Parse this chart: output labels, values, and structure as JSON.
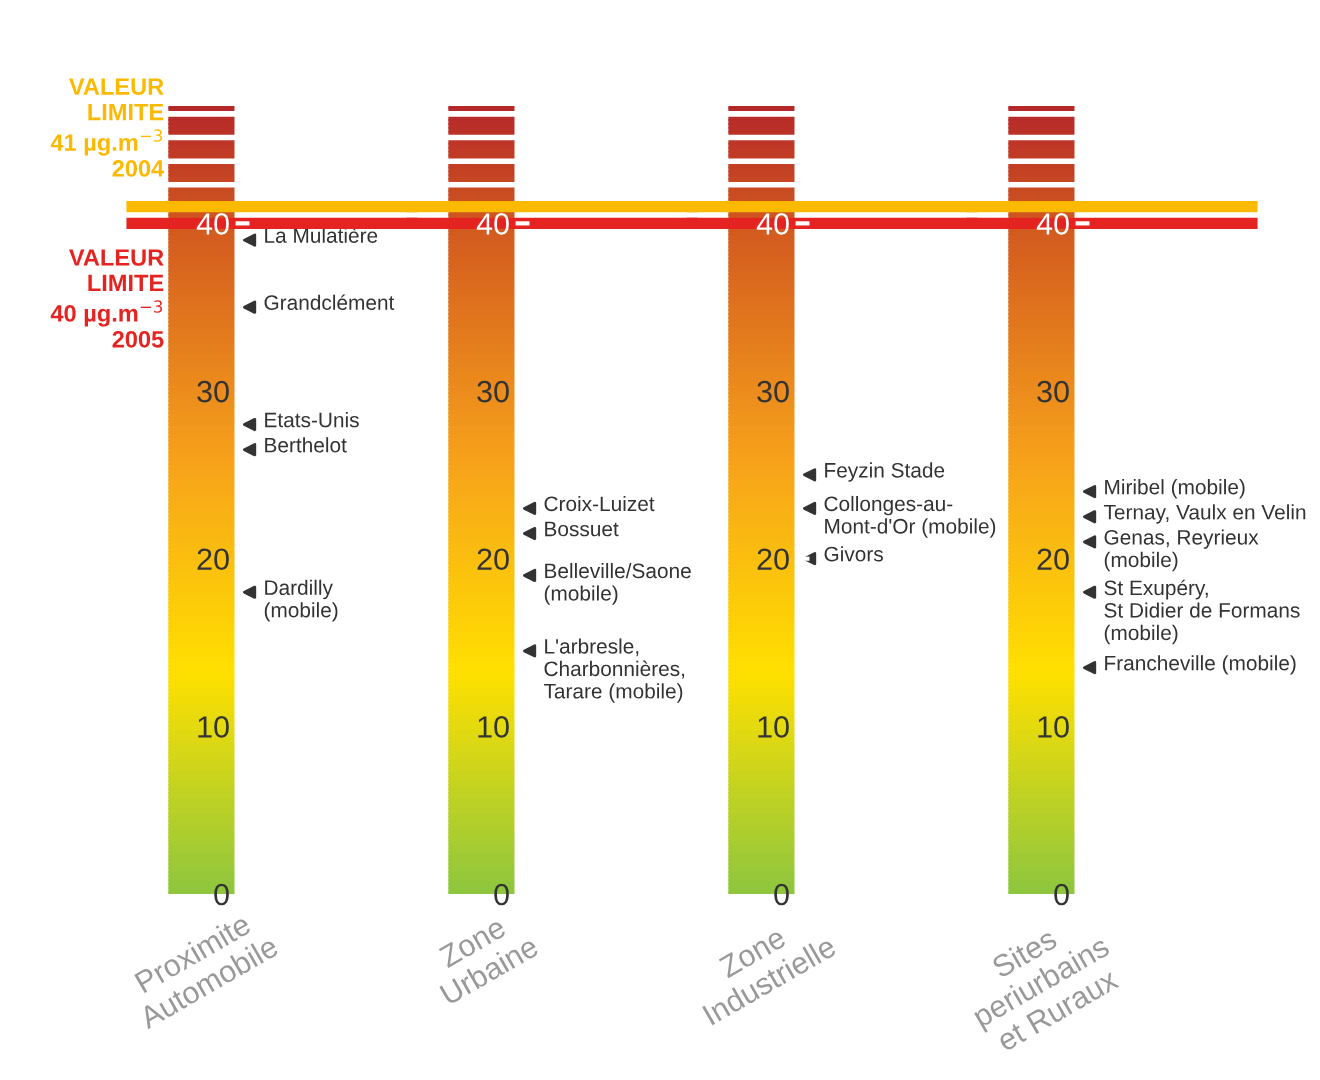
{
  "chart_data": [
    {
      "type": "scatter",
      "categories": [
        "Proximite\nAutomobile"
      ],
      "marker": "triangle",
      "ylim": [
        0,
        47
      ],
      "yticks": [
        0,
        10,
        20,
        30,
        40
      ],
      "series": [
        {
          "color": "#333333",
          "x": [
            "Proximite\nAutomobile",
            "Proximite\nAutomobile",
            "Proximite\nAutomobile",
            "Proximite\nAutomobile",
            "Proximite\nAutomobile"
          ],
          "values": [
            39,
            35,
            28,
            26.5,
            18
          ],
          "value_labels": [
            "La Mulatière",
            "Grandclément",
            "Etats-Unis",
            "Berthelot",
            "Dardilly\n(mobile)"
          ]
        }
      ],
      "ref_lines": [
        {
          "axis": "y",
          "value": 41,
          "label": "VALEUR\nLIMITE\n41 µg.m$^{−3}$\n2004",
          "color": "#fbb900"
        },
        {
          "axis": "y",
          "value": 40,
          "label": "VALEUR\nLIMITE\n40 µg.m$^{−3}$\n2005",
          "color": "#e52421"
        }
      ]
    },
    {
      "type": "scatter",
      "categories": [
        "Zone\nUrbaine"
      ],
      "marker": "triangle",
      "ylim": [
        0,
        47
      ],
      "yticks": [
        0,
        10,
        20,
        30,
        40
      ],
      "series": [
        {
          "color": "#333333",
          "x": [
            "Zone\nUrbaine",
            "Zone\nUrbaine",
            "Zone\nUrbaine",
            "Zone\nUrbaine"
          ],
          "values": [
            23,
            21.5,
            19,
            14.5
          ],
          "value_labels": [
            "Croix-Luizet",
            "Bossuet",
            "Belleville/Saone\n(mobile)",
            "L'arbresle,\nCharbonnières,\nTarare (mobile)"
          ]
        }
      ],
      "ref_lines": [
        {
          "axis": "y",
          "value": 41,
          "label": null,
          "color": "#fbb900"
        },
        {
          "axis": "y",
          "value": 40,
          "label": null,
          "color": "#e52421"
        }
      ]
    },
    {
      "type": "scatter",
      "categories": [
        "Zone\nIndustrielle"
      ],
      "marker": "triangle",
      "ylim": [
        0,
        47
      ],
      "yticks": [
        0,
        10,
        20,
        30,
        40
      ],
      "series": [
        {
          "color": "#333333",
          "x": [
            "Zone\nIndustrielle",
            "Zone\nIndustrielle",
            "Zone\nIndustrielle"
          ],
          "values": [
            25,
            23,
            20
          ],
          "value_labels": [
            "Feyzin Stade",
            "Collonges-au-\nMont-d'Or (mobile)",
            "Givors"
          ]
        }
      ],
      "ref_lines": [
        {
          "axis": "y",
          "value": 41,
          "label": null,
          "color": "#fbb900"
        },
        {
          "axis": "y",
          "value": 40,
          "label": null,
          "color": "#e52421"
        }
      ]
    },
    {
      "type": "scatter",
      "categories": [
        "Sites\nperiurbains\net Ruraux"
      ],
      "marker": "triangle",
      "ylim": [
        0,
        47
      ],
      "yticks": [
        0,
        10,
        20,
        30,
        40
      ],
      "series": [
        {
          "color": "#333333",
          "x": [
            "Sites\nperiurbains\net Ruraux",
            "Sites\nperiurbains\net Ruraux",
            "Sites\nperiurbains\net Ruraux",
            "Sites\nperiurbains\net Ruraux",
            "Sites\nperiurbains\net Ruraux"
          ],
          "values": [
            24,
            22.5,
            21,
            18,
            13.5
          ],
          "value_labels": [
            "Miribel (mobile)",
            "Ternay, Vaulx en Velin",
            "Genas, Reyrieux\n(mobile)",
            "St Exupéry,\nSt Didier de Formans\n(mobile)",
            "Francheville (mobile)"
          ]
        }
      ],
      "ref_lines": [
        {
          "axis": "y",
          "value": 41,
          "label": null,
          "color": "#fbb900"
        },
        {
          "axis": "y",
          "value": 40,
          "label": null,
          "color": "#e52421"
        }
      ]
    }
  ]
}
